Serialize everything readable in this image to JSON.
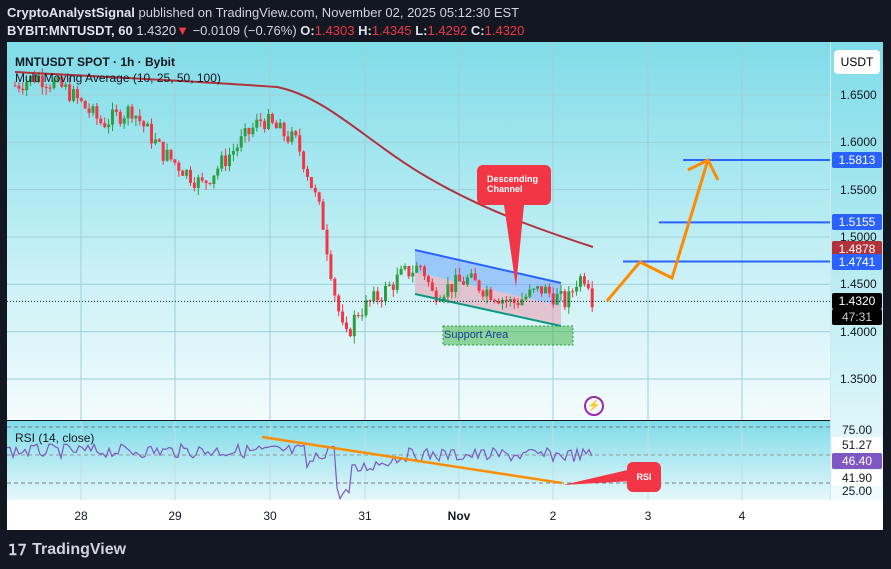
{
  "header": {
    "author": "CryptoAnalystSignal",
    "published": "published on TradingView.com, November 02, 2025 05:12:30 EST",
    "symbol": "BYBIT:MNTUSDT, 60",
    "last": "1.4320",
    "change": "−0.0109 (−0.76%)",
    "o_label": "O:",
    "o": "1.4303",
    "h_label": "H:",
    "h": "1.4345",
    "l_label": "L:",
    "l": "1.4292",
    "c_label": "C:",
    "c": "1.4320"
  },
  "legend": {
    "title": "MNTUSDT SPOT · 1h · Bybit",
    "indicator": "Multi Moving Average (10, 25, 50, 100)"
  },
  "axis": {
    "currency": "USDT",
    "ticks": [
      "1.6500",
      "1.6000",
      "1.5500",
      "1.5000",
      "1.4500",
      "1.4000",
      "1.3500"
    ],
    "tags": {
      "t1": "1.5813",
      "t2": "1.5155",
      "ma": "1.4878",
      "t3": "1.4741",
      "price": "1.4320",
      "countdown": "47:31"
    },
    "rsi_ticks": [
      "75.00",
      "25.00"
    ],
    "rsi_tags": {
      "upper": "51.27",
      "value": "46.40",
      "lower": "41.90"
    }
  },
  "annotations": {
    "channel": "Descending Channel",
    "support": "Support Area",
    "rsi": "RSI"
  },
  "rsi": {
    "title": "RSI (14, close)"
  },
  "time_ticks": [
    "28",
    "29",
    "30",
    "31",
    "Nov",
    "2",
    "3",
    "4"
  ],
  "footer": {
    "brand": "TradingView"
  },
  "colors": {
    "up": "#2e9e3e",
    "down": "#f23645",
    "ma": "#b2323c",
    "target": "#2962ff",
    "projection": "#ff8c00",
    "rsi": "#7e57c2"
  }
}
